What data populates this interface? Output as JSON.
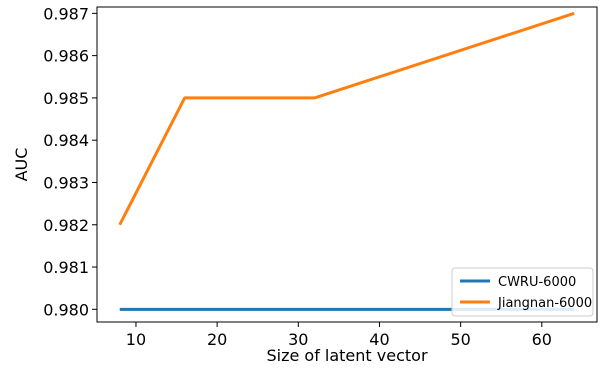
{
  "chart_data": {
    "type": "line",
    "title": "",
    "xlabel": "Size of latent vector",
    "ylabel": "AUC",
    "x": [
      8,
      16,
      32,
      64
    ],
    "xlim": [
      5.2,
      66.8
    ],
    "ylim": [
      0.9797,
      0.98715
    ],
    "xticks": [
      10,
      20,
      30,
      40,
      50,
      60
    ],
    "xtick_labels": [
      "10",
      "20",
      "30",
      "40",
      "50",
      "60"
    ],
    "yticks": [
      0.98,
      0.981,
      0.982,
      0.983,
      0.984,
      0.985,
      0.986,
      0.987
    ],
    "ytick_labels": [
      "0.980",
      "0.981",
      "0.982",
      "0.983",
      "0.984",
      "0.985",
      "0.986",
      "0.987"
    ],
    "grid": false,
    "legend_position": "bottom-right",
    "series": [
      {
        "name": "CWRU-6000",
        "color": "#1f77b4",
        "values": [
          0.98,
          0.98,
          0.98,
          0.98
        ]
      },
      {
        "name": "Jiangnan-6000",
        "color": "#ff7f0e",
        "values": [
          0.982,
          0.985,
          0.985,
          0.987
        ]
      }
    ]
  }
}
